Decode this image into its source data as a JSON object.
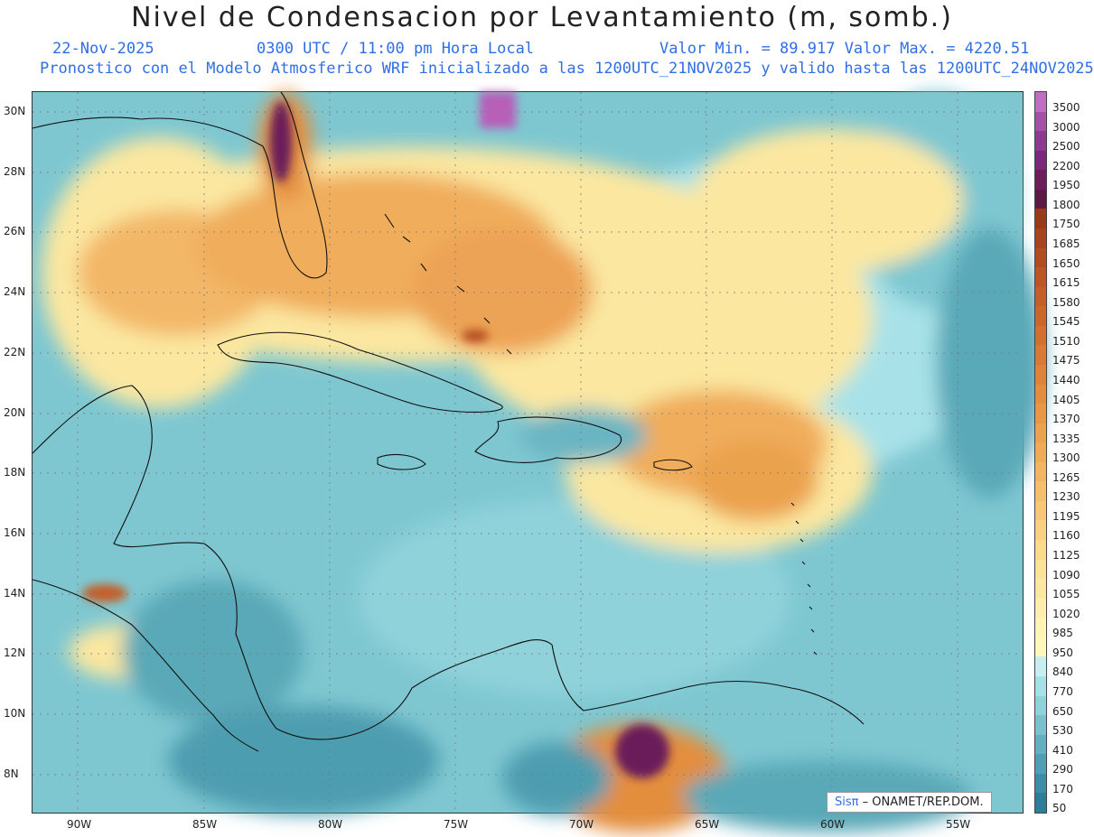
{
  "title": "Nivel de Condensacion por Levantamiento (m, somb.)",
  "header": {
    "date": "22-Nov-2025",
    "time": "0300 UTC / 11:00 pm Hora Local",
    "minmax": "Valor Min. = 89.917  Valor Max. = 4220.51",
    "model_info": "Pronostico con el Modelo Atmosferico WRF inicializado a las 1200UTC_21NOV2025 y valido hasta las  1200UTC_24NOV2025"
  },
  "axes": {
    "lat_labels": [
      "30N",
      "28N",
      "26N",
      "24N",
      "22N",
      "20N",
      "18N",
      "16N",
      "14N",
      "12N",
      "10N",
      "8N"
    ],
    "lon_labels": [
      "90W",
      "85W",
      "80W",
      "75W",
      "70W",
      "65W",
      "60W",
      "55W"
    ]
  },
  "legend": {
    "labels": [
      "3500",
      "3000",
      "2500",
      "2200",
      "1950",
      "1800",
      "1750",
      "1685",
      "1650",
      "1615",
      "1580",
      "1545",
      "1510",
      "1475",
      "1440",
      "1405",
      "1370",
      "1335",
      "1300",
      "1265",
      "1230",
      "1195",
      "1160",
      "1125",
      "1090",
      "1055",
      "1020",
      "985",
      "950",
      "840",
      "770",
      "650",
      "530",
      "410",
      "290",
      "170",
      "50"
    ],
    "colors": [
      "#c06fc0",
      "#a552a5",
      "#8e3a8e",
      "#7a2a78",
      "#6a1f5a",
      "#5a1a44",
      "#9a3a1c",
      "#a8431f",
      "#b44c22",
      "#bd5524",
      "#c55e28",
      "#cc672b",
      "#d2702f",
      "#d87a33",
      "#de8438",
      "#e38e3e",
      "#e79845",
      "#eba24d",
      "#efac56",
      "#f2b660",
      "#f5c06b",
      "#f7c976",
      "#f9d281",
      "#fadb8c",
      "#fbe297",
      "#fce9a1",
      "#fdefab",
      "#fef4b4",
      "#fef8bd",
      "#c9eef0",
      "#a6e1e6",
      "#8fd2da",
      "#79c2cd",
      "#63b1c0",
      "#4ea0b2",
      "#3b8fa4",
      "#2d7f97"
    ]
  },
  "credit": {
    "brand": "Sisπ",
    "text": " – ONAMET/REP.DOM."
  }
}
